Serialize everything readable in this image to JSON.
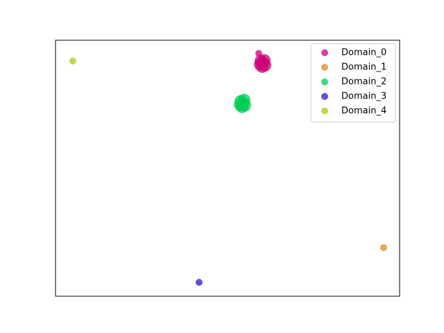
{
  "chart_data": {
    "type": "scatter",
    "xlim": [
      0,
      100
    ],
    "ylim": [
      0,
      100
    ],
    "legend": "upper right",
    "series": [
      {
        "name": "Domain_0",
        "color": "#cc0077",
        "x": [
          59.07,
          60.28,
          59.68,
          60.89,
          60.08,
          60.69,
          59.48
        ],
        "y": [
          94.85,
          91.06,
          91.87,
          90.24,
          89.7,
          92.14,
          90.51
        ]
      },
      {
        "name": "Domain_1",
        "color": "#d98c1a",
        "x": [
          95.36
        ],
        "y": [
          18.97
        ]
      },
      {
        "name": "Domain_2",
        "color": "#00cc55",
        "x": [
          54.44,
          53.83,
          55.04,
          54.23,
          54.84,
          53.63
        ],
        "y": [
          75.34,
          76.15,
          74.53,
          73.98,
          76.69,
          74.8
        ]
      },
      {
        "name": "Domain_3",
        "color": "#3311cc",
        "x": [
          41.73
        ],
        "y": [
          5.42
        ]
      },
      {
        "name": "Domain_4",
        "color": "#aacc11",
        "x": [
          5.04
        ],
        "y": [
          91.87
        ]
      }
    ]
  }
}
